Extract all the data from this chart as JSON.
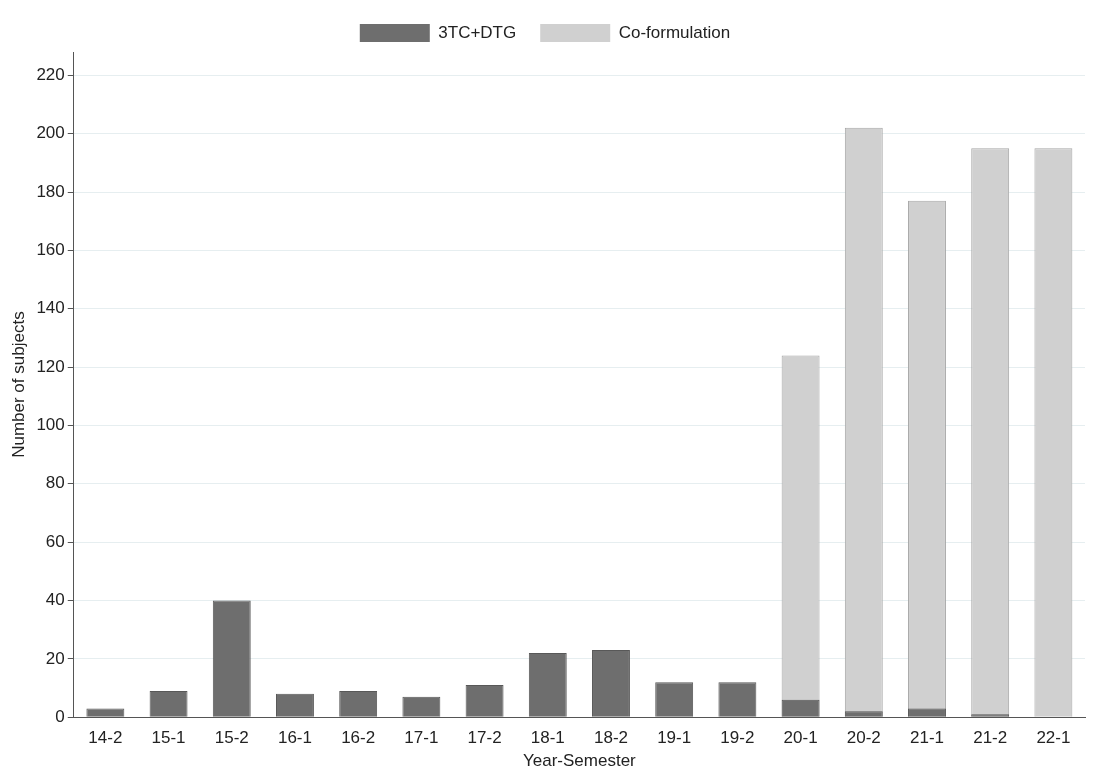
{
  "chart_data": {
    "type": "bar",
    "xlabel": "Year-Semester",
    "ylabel": "Number of subjects",
    "categories": [
      "14-2",
      "15-1",
      "15-2",
      "16-1",
      "16-2",
      "17-1",
      "17-2",
      "18-1",
      "18-2",
      "19-1",
      "19-2",
      "20-1",
      "20-2",
      "21-1",
      "21-2",
      "22-1"
    ],
    "series": [
      {
        "name": "3TC+DTG",
        "color": "#6e6e6e",
        "values": [
          3,
          9,
          40,
          8,
          9,
          7,
          11,
          22,
          23,
          12,
          12,
          6,
          2,
          3,
          1,
          null
        ]
      },
      {
        "name": "Co-formulation",
        "color": "#d0d0d0",
        "values": [
          null,
          null,
          null,
          null,
          null,
          null,
          null,
          null,
          null,
          null,
          null,
          124,
          202,
          177,
          195,
          195
        ]
      }
    ],
    "ylim": [
      0,
      228
    ],
    "yticks": [
      0,
      20,
      40,
      60,
      80,
      100,
      120,
      140,
      160,
      180,
      200,
      220
    ],
    "grid": "y",
    "legend": "top"
  }
}
